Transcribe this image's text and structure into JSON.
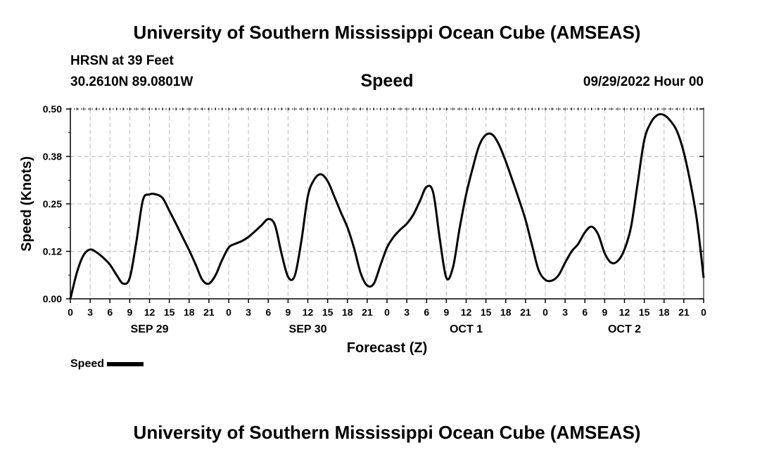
{
  "header": {
    "title": "University of Southern Mississippi Ocean Cube (AMSEAS)",
    "station": "HRSN at 39 Feet",
    "coords": "30.2610N  89.0801W",
    "variable": "Speed",
    "date": "09/29/2022 Hour 00"
  },
  "footer": {
    "title": "University of Southern Mississippi Ocean Cube (AMSEAS)"
  },
  "legend": {
    "label": "Speed"
  },
  "chart_data": {
    "type": "line",
    "title": "Speed",
    "xlabel": "Forecast (Z)",
    "ylabel": "Speed (Knots)",
    "ylim": [
      0,
      0.5
    ],
    "xlim": [
      0,
      96
    ],
    "y_ticks": [
      0.0,
      0.125,
      0.25,
      0.375,
      0.5
    ],
    "y_tick_labels": [
      "0.00",
      "0.12",
      "0.25",
      "0.38",
      "0.50"
    ],
    "x_tick_hours": [
      0,
      3,
      6,
      9,
      12,
      15,
      18,
      21,
      24,
      27,
      30,
      33,
      36,
      39,
      42,
      45,
      48,
      51,
      54,
      57,
      60,
      63,
      66,
      69,
      72,
      75,
      78,
      81,
      84,
      87,
      90,
      93,
      96
    ],
    "x_tick_labels": [
      "0",
      "3",
      "6",
      "9",
      "12",
      "15",
      "18",
      "21",
      "0",
      "3",
      "6",
      "9",
      "12",
      "15",
      "18",
      "21",
      "0",
      "3",
      "6",
      "9",
      "12",
      "15",
      "18",
      "21",
      "0",
      "3",
      "6",
      "9",
      "12",
      "15",
      "18",
      "21",
      "0"
    ],
    "day_labels": [
      {
        "label": "SEP 29",
        "hour": 12
      },
      {
        "label": "SEP 30",
        "hour": 36
      },
      {
        "label": "OCT 1",
        "hour": 60
      },
      {
        "label": "OCT 2",
        "hour": 84
      }
    ],
    "grid": true,
    "series": [
      {
        "name": "Speed",
        "x": [
          0,
          1,
          2,
          3,
          4,
          5,
          6,
          7,
          8,
          9,
          10,
          11,
          12,
          13,
          14,
          15,
          16,
          17,
          18,
          19,
          20,
          21,
          22,
          23,
          24,
          25,
          26,
          27,
          28,
          29,
          30,
          31,
          32,
          33,
          34,
          35,
          36,
          37,
          38,
          39,
          40,
          41,
          42,
          43,
          44,
          45,
          46,
          47,
          48,
          49,
          50,
          51,
          52,
          53,
          54,
          55,
          56,
          57,
          58,
          59,
          60,
          61,
          62,
          63,
          64,
          65,
          66,
          67,
          68,
          69,
          70,
          71,
          72,
          73,
          74,
          75,
          76,
          77,
          78,
          79,
          80,
          81,
          82,
          83,
          84,
          85,
          86,
          87,
          88,
          89,
          90,
          91,
          92,
          93,
          94,
          95,
          96
        ],
        "y": [
          0.0,
          0.07,
          0.115,
          0.13,
          0.122,
          0.108,
          0.09,
          0.063,
          0.04,
          0.055,
          0.15,
          0.26,
          0.275,
          0.275,
          0.265,
          0.232,
          0.198,
          0.163,
          0.128,
          0.09,
          0.05,
          0.04,
          0.062,
          0.102,
          0.135,
          0.145,
          0.152,
          0.163,
          0.178,
          0.194,
          0.21,
          0.195,
          0.12,
          0.058,
          0.06,
          0.15,
          0.27,
          0.315,
          0.328,
          0.31,
          0.27,
          0.228,
          0.188,
          0.134,
          0.068,
          0.035,
          0.04,
          0.088,
          0.135,
          0.163,
          0.182,
          0.198,
          0.222,
          0.258,
          0.295,
          0.28,
          0.158,
          0.055,
          0.083,
          0.185,
          0.275,
          0.345,
          0.405,
          0.432,
          0.432,
          0.405,
          0.362,
          0.313,
          0.262,
          0.208,
          0.14,
          0.075,
          0.05,
          0.048,
          0.062,
          0.095,
          0.125,
          0.145,
          0.175,
          0.19,
          0.17,
          0.12,
          0.095,
          0.1,
          0.13,
          0.19,
          0.305,
          0.418,
          0.464,
          0.484,
          0.484,
          0.468,
          0.44,
          0.385,
          0.305,
          0.205,
          0.055
        ]
      }
    ]
  }
}
